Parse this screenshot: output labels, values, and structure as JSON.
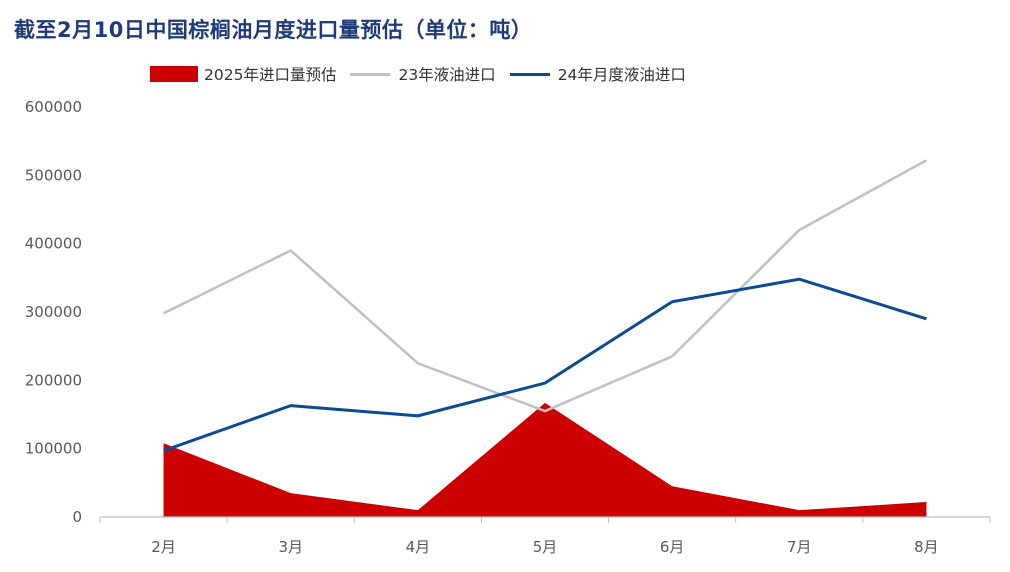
{
  "chart_data": {
    "type": "area",
    "title": "截至2月10日中国棕榈油月度进口量预估（单位：吨）",
    "categories": [
      "2月",
      "3月",
      "4月",
      "5月",
      "6月",
      "7月",
      "8月"
    ],
    "y_ticks": [
      "0",
      "100000",
      "200000",
      "300000",
      "400000",
      "500000",
      "600000"
    ],
    "ylim": [
      0,
      600000
    ],
    "grid": false,
    "legend_position": "top",
    "series": [
      {
        "name": "2025年进口量预估",
        "type": "area",
        "color": "#cc0000",
        "values": [
          108000,
          35000,
          10000,
          167000,
          45000,
          10000,
          22000
        ]
      },
      {
        "name": "23年液油进口",
        "type": "line",
        "color": "#c0c0c0",
        "values": [
          298000,
          390000,
          225000,
          155000,
          235000,
          420000,
          522000
        ]
      },
      {
        "name": "24年月度液油进口",
        "type": "line",
        "color": "#0d4a96",
        "values": [
          97000,
          163000,
          148000,
          196000,
          315000,
          348000,
          290000
        ]
      }
    ]
  }
}
